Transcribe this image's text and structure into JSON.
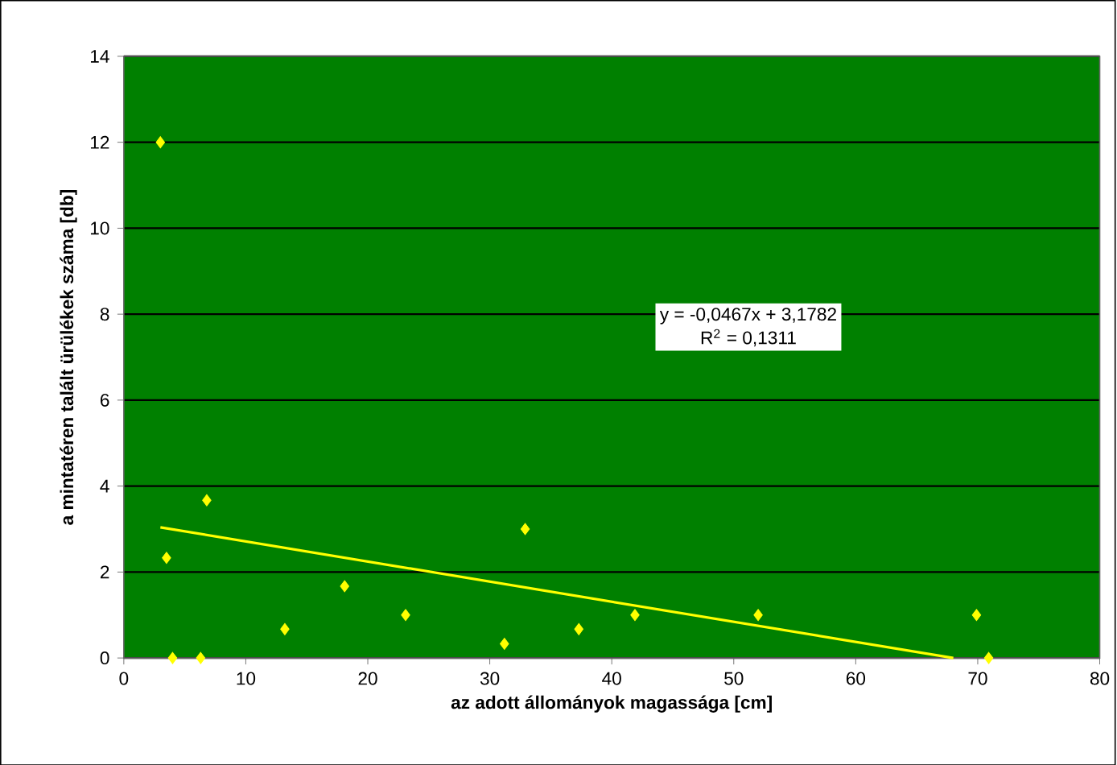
{
  "chart_data": {
    "type": "scatter",
    "xlabel": "az adott állományok magassága [cm]",
    "ylabel": "a mintatéren talált ürülékek száma [db]",
    "xlim": [
      0,
      80
    ],
    "xticks": [
      0,
      10,
      20,
      30,
      40,
      50,
      60,
      70,
      80
    ],
    "ylim": [
      0,
      14
    ],
    "yticks": [
      0,
      2,
      4,
      6,
      8,
      10,
      12,
      14
    ],
    "grid": "y",
    "marker": "diamond",
    "annotations": [
      "y = -0,0467x + 3,1782",
      "R$^{2}$ = 0,1311"
    ],
    "series": [
      {
        "color": "#ffff00",
        "x": [
          3,
          3.5,
          4,
          6.3,
          6.8,
          13.2,
          18.1,
          23.1,
          31.2,
          32.9,
          37.3,
          41.9,
          52,
          69.9,
          70.9
        ],
        "values": [
          12,
          2.33,
          0,
          0,
          3.67,
          0.67,
          1.67,
          1,
          0.33,
          3,
          0.67,
          1,
          1,
          1,
          0
        ]
      },
      {
        "type": "line",
        "color": "#ffff00",
        "marker": "none",
        "line_style": "solid",
        "x": [
          3,
          68
        ],
        "values": [
          3.04,
          0
        ]
      }
    ]
  }
}
